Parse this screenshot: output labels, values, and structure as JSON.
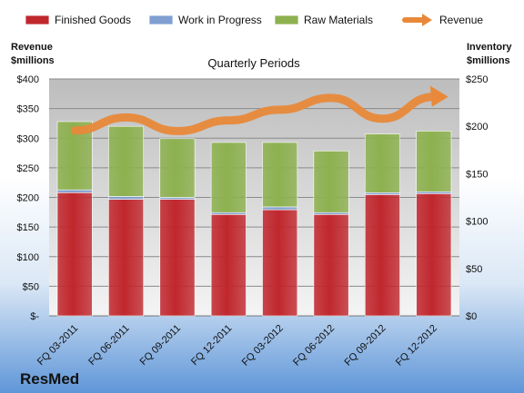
{
  "chart_data": {
    "type": "bar",
    "stacked": true,
    "subtitle": "Quarterly Periods",
    "company": "ResMed",
    "categories": [
      "FQ 03-2011",
      "FQ 06-2011",
      "FQ 09-2011",
      "FQ 12-2011",
      "FQ 03-2012",
      "FQ 06-2012",
      "FQ 09-2012",
      "FQ 12-2012"
    ],
    "left_axis": {
      "label_line1": "Revenue",
      "label_line2": "$millions",
      "ylim": [
        0,
        400
      ],
      "ticks": [
        "$-",
        "$50",
        "$100",
        "$150",
        "$200",
        "$250",
        "$300",
        "$350",
        "$400"
      ]
    },
    "right_axis": {
      "label_line1": "Inventory",
      "label_line2": "$millions",
      "ylim": [
        0,
        250
      ],
      "ticks": [
        "$0",
        "$50",
        "$100",
        "$150",
        "$200",
        "$250"
      ]
    },
    "series": [
      {
        "name": "Finished Goods",
        "axis": "right",
        "color": "#c0272d",
        "values": [
          130,
          123,
          123,
          107,
          112,
          107,
          128,
          129
        ]
      },
      {
        "name": "Work in Progress",
        "axis": "right",
        "color": "#7f9fd1",
        "values": [
          3,
          3,
          2,
          2,
          3,
          2,
          2,
          2
        ]
      },
      {
        "name": "Raw Materials",
        "axis": "right",
        "color": "#8db14f",
        "values": [
          72,
          74,
          62,
          74,
          68,
          65,
          62,
          64
        ]
      },
      {
        "name": "Revenue",
        "axis": "left",
        "type": "line",
        "color": "#e8893a",
        "values": [
          313,
          335,
          312,
          330,
          348,
          368,
          333,
          370
        ]
      }
    ],
    "grid": true,
    "legend_position": "top"
  }
}
